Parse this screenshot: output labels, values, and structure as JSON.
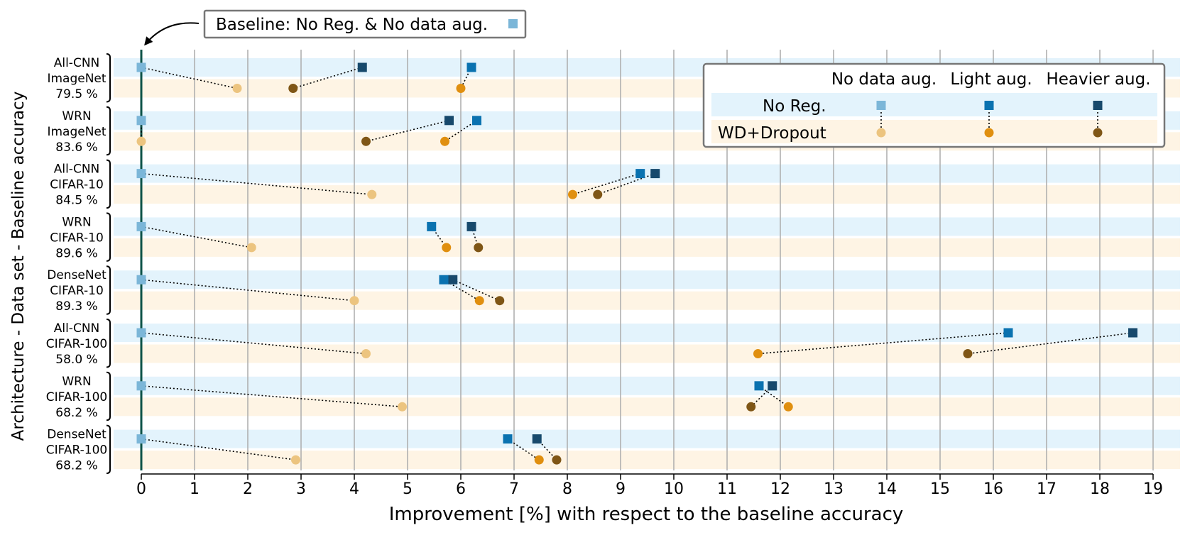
{
  "chart_data": {
    "type": "scatter",
    "title": "",
    "xlabel": "Improvement [%] with respect to the baseline accuracy",
    "ylabel": "Architecture - Data set - Baseline accuracy",
    "xlim": [
      -0.55,
      19.5
    ],
    "x_ticks": [
      "0",
      "1",
      "2",
      "3",
      "4",
      "5",
      "6",
      "7",
      "8",
      "9",
      "10",
      "11",
      "12",
      "13",
      "14",
      "15",
      "16",
      "17",
      "18",
      "19"
    ],
    "grid": "vertical",
    "colors": {
      "noreg_none": "#7bb6d8",
      "noreg_light": "#0a72b0",
      "noreg_heavy": "#17496c",
      "wd_none": "#ecc47f",
      "wd_light": "#e08f0f",
      "wd_heavy": "#7f5616",
      "band_noreg": "#e3f3fc",
      "band_wd": "#fef4e4",
      "baseline_line": "#0d5348"
    },
    "baseline_callout": "Baseline: No Reg. & No data aug.",
    "legend": {
      "placement": "top-right",
      "columns": [
        "No data aug.",
        "Light aug.",
        "Heavier aug."
      ],
      "rows": [
        "No Reg.",
        "WD+Dropout"
      ]
    },
    "groups": [
      {
        "arch": "All-CNN",
        "dataset": "ImageNet",
        "baseline": "79.5 %",
        "noreg": [
          0,
          6.2,
          4.15
        ],
        "wd": [
          1.8,
          6.0,
          2.85
        ]
      },
      {
        "arch": "WRN",
        "dataset": "ImageNet",
        "baseline": "83.6 %",
        "noreg": [
          0,
          6.3,
          5.78
        ],
        "wd": [
          0,
          5.7,
          4.22
        ]
      },
      {
        "arch": "All-CNN",
        "dataset": "CIFAR-10",
        "baseline": "84.5 %",
        "noreg": [
          0,
          9.37,
          9.65
        ],
        "wd": [
          4.33,
          8.1,
          8.57
        ]
      },
      {
        "arch": "WRN",
        "dataset": "CIFAR-10",
        "baseline": "89.6 %",
        "noreg": [
          0,
          5.45,
          6.2
        ],
        "wd": [
          2.07,
          5.73,
          6.33
        ]
      },
      {
        "arch": "DenseNet",
        "dataset": "CIFAR-10",
        "baseline": "89.3 %",
        "noreg": [
          0,
          5.68,
          5.85
        ],
        "wd": [
          4.0,
          6.35,
          6.73
        ]
      },
      {
        "arch": "All-CNN",
        "dataset": "CIFAR-100",
        "baseline": "58.0 %",
        "noreg": [
          0,
          16.28,
          18.62
        ],
        "wd": [
          4.22,
          11.58,
          15.52
        ]
      },
      {
        "arch": "WRN",
        "dataset": "CIFAR-100",
        "baseline": "68.2 %",
        "noreg": [
          0,
          11.6,
          11.85
        ],
        "wd": [
          4.9,
          12.15,
          11.45
        ]
      },
      {
        "arch": "DenseNet",
        "dataset": "CIFAR-100",
        "baseline": "68.2 %",
        "noreg": [
          0,
          6.88,
          7.43
        ],
        "wd": [
          2.9,
          7.47,
          7.8
        ]
      }
    ]
  }
}
